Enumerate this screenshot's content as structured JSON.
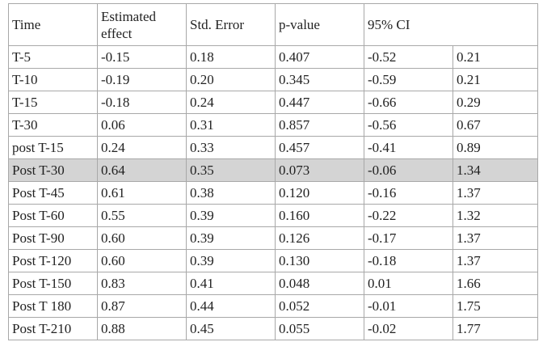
{
  "table": {
    "headers": [
      "Time",
      "Estimated effect",
      "Std. Error",
      "p-value",
      "95% CI"
    ],
    "highlight_color": "#d4d4d4",
    "highlighted_row_index": 5,
    "rows": [
      [
        "T-5",
        "-0.15",
        "0.18",
        "0.407",
        "-0.52",
        "0.21"
      ],
      [
        "T-10",
        "-0.19",
        "0.20",
        "0.345",
        "-0.59",
        "0.21"
      ],
      [
        "T-15",
        "-0.18",
        "0.24",
        "0.447",
        "-0.66",
        "0.29"
      ],
      [
        "T-30",
        "0.06",
        "0.31",
        "0.857",
        "-0.56",
        "0.67"
      ],
      [
        "post T-15",
        "0.24",
        "0.33",
        "0.457",
        "-0.41",
        "0.89"
      ],
      [
        "Post T-30",
        "0.64",
        "0.35",
        "0.073",
        "-0.06",
        "1.34"
      ],
      [
        "Post T-45",
        "0.61",
        "0.38",
        "0.120",
        "-0.16",
        "1.37"
      ],
      [
        "Post T-60",
        "0.55",
        "0.39",
        "0.160",
        "-0.22",
        "1.32"
      ],
      [
        "Post T-90",
        "0.60",
        "0.39",
        "0.126",
        "-0.17",
        "1.37"
      ],
      [
        "Post T-120",
        "0.60",
        "0.39",
        "0.130",
        "-0.18",
        "1.37"
      ],
      [
        "Post T-150",
        "0.83",
        "0.41",
        "0.048",
        "0.01",
        "1.66"
      ],
      [
        "Post T 180",
        "0.87",
        "0.44",
        "0.052",
        "-0.01",
        "1.75"
      ],
      [
        "Post T-210",
        "0.88",
        "0.45",
        "0.055",
        "-0.02",
        "1.77"
      ]
    ]
  }
}
